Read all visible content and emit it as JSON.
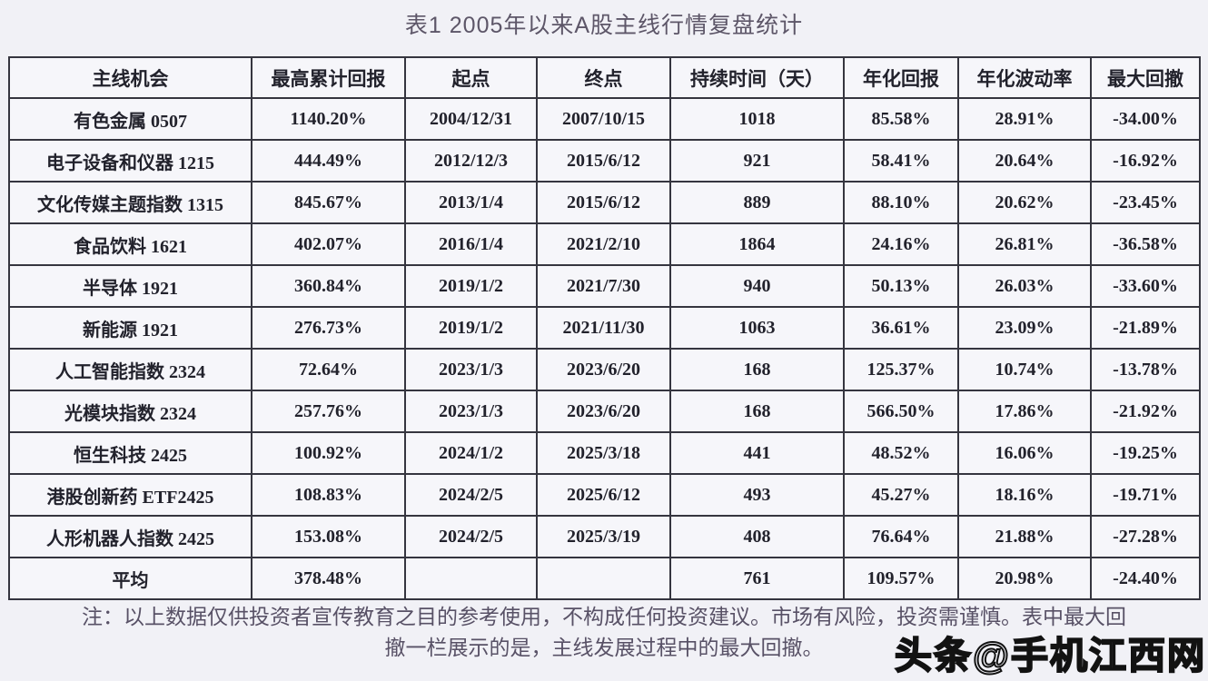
{
  "title": "表1 2005年以来A股主线行情复盘统计",
  "chart_data": {
    "type": "table",
    "title": "表1 2005年以来A股主线行情复盘统计",
    "columns": [
      "主线机会",
      "最高累计回报",
      "起点",
      "终点",
      "持续时间（天）",
      "年化回报",
      "年化波动率",
      "最大回撤"
    ],
    "rows": [
      [
        "有色金属 0507",
        "1140.20%",
        "2004/12/31",
        "2007/10/15",
        "1018",
        "85.58%",
        "28.91%",
        "-34.00%"
      ],
      [
        "电子设备和仪器 1215",
        "444.49%",
        "2012/12/3",
        "2015/6/12",
        "921",
        "58.41%",
        "20.64%",
        "-16.92%"
      ],
      [
        "文化传媒主题指数 1315",
        "845.67%",
        "2013/1/4",
        "2015/6/12",
        "889",
        "88.10%",
        "20.62%",
        "-23.45%"
      ],
      [
        "食品饮料 1621",
        "402.07%",
        "2016/1/4",
        "2021/2/10",
        "1864",
        "24.16%",
        "26.81%",
        "-36.58%"
      ],
      [
        "半导体 1921",
        "360.84%",
        "2019/1/2",
        "2021/7/30",
        "940",
        "50.13%",
        "26.03%",
        "-33.60%"
      ],
      [
        "新能源 1921",
        "276.73%",
        "2019/1/2",
        "2021/11/30",
        "1063",
        "36.61%",
        "23.09%",
        "-21.89%"
      ],
      [
        "人工智能指数 2324",
        "72.64%",
        "2023/1/3",
        "2023/6/20",
        "168",
        "125.37%",
        "10.74%",
        "-13.78%"
      ],
      [
        "光模块指数 2324",
        "257.76%",
        "2023/1/3",
        "2023/6/20",
        "168",
        "566.50%",
        "17.86%",
        "-21.92%"
      ],
      [
        "恒生科技 2425",
        "100.92%",
        "2024/1/2",
        "2025/3/18",
        "441",
        "48.52%",
        "16.06%",
        "-19.25%"
      ],
      [
        "港股创新药 ETF2425",
        "108.83%",
        "2024/2/5",
        "2025/6/12",
        "493",
        "45.27%",
        "18.16%",
        "-19.71%"
      ],
      [
        "人形机器人指数 2425",
        "153.08%",
        "2024/2/5",
        "2025/3/19",
        "408",
        "76.64%",
        "21.88%",
        "-27.28%"
      ],
      [
        "平均",
        "378.48%",
        "",
        "",
        "761",
        "109.57%",
        "20.98%",
        "-24.40%"
      ]
    ]
  },
  "note": {
    "line1": "注：以上数据仅供投资者宣传教育之目的参考使用，不构成任何投资建议。市场有风险，投资需谨慎。表中最大回",
    "line2": "撤一栏展示的是，主线发展过程中的最大回撤。"
  },
  "watermark": {
    "text": "头条@手机江西网"
  },
  "colors": {
    "background": "#f1f1f6",
    "cell_background": "#f6f6fa",
    "border": "#35353f",
    "table_text": "#22222c",
    "title_text": "#5d5668",
    "note_text": "#585166",
    "watermark_outline": "#121212"
  }
}
